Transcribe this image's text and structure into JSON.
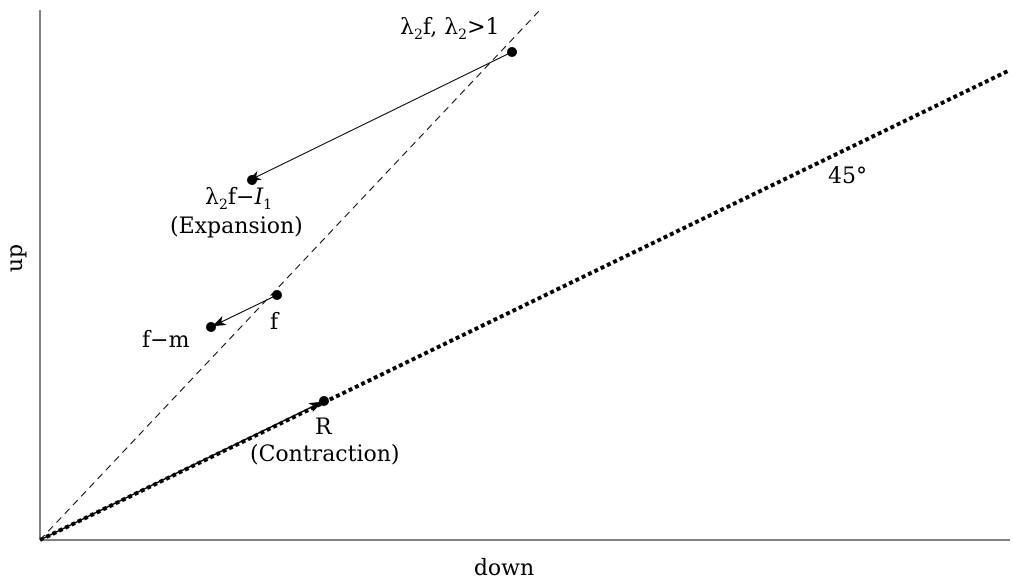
{
  "axes": {
    "x_label": "down",
    "y_label": "up"
  },
  "labels": {
    "lambda_f_main": "λ",
    "lambda_f_sub": "2",
    "lambda_f_rest": "f, λ",
    "lambda_f_sub2": "2",
    "lambda_f_cond": ">1",
    "expansion_point_main": "λ",
    "expansion_point_sub": "2",
    "expansion_point_rest": "f−",
    "expansion_point_I": "I",
    "expansion_point_Isub": "1",
    "expansion_caption": "(Expansion)",
    "f_point": "f",
    "fm_point": "f−m",
    "r_point": "R",
    "contraction_caption": "(Contraction)",
    "angle_label": "45°"
  }
}
